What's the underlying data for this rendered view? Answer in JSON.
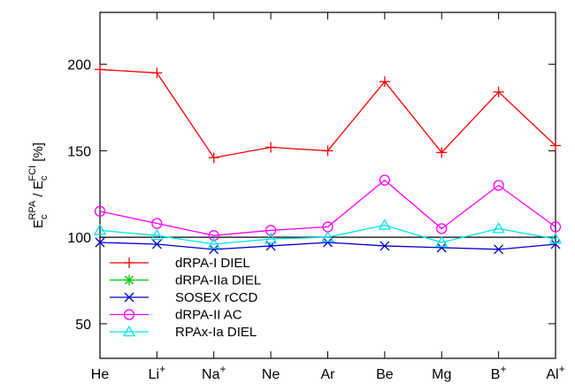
{
  "chart_data": {
    "type": "line",
    "title": "",
    "xlabel": "",
    "ylabel": {
      "base_main": "E",
      "base_sub": "c",
      "base_sup": "RPA",
      "slash": " / ",
      "ref_main": "E",
      "ref_sub": "c",
      "ref_sup": "FCI",
      "unit": "[%]"
    },
    "categories": [
      {
        "main": "He",
        "sup": ""
      },
      {
        "main": "Li",
        "sup": "+"
      },
      {
        "main": "Na",
        "sup": "+"
      },
      {
        "main": "Ne",
        "sup": ""
      },
      {
        "main": "Ar",
        "sup": ""
      },
      {
        "main": "Be",
        "sup": ""
      },
      {
        "main": "Mg",
        "sup": ""
      },
      {
        "main": "B",
        "sup": "+"
      },
      {
        "main": "Al",
        "sup": "+"
      }
    ],
    "ylim": [
      30,
      230
    ],
    "yticks": [
      50,
      100,
      150,
      200
    ],
    "reference_line": 100,
    "grid": false,
    "legend_position": "lower-left",
    "series": [
      {
        "name": "dRPA-I DIEL",
        "color": "#ff0000",
        "marker": "plus",
        "values": [
          197,
          195,
          146,
          152,
          150,
          190,
          149,
          184,
          153
        ]
      },
      {
        "name": "dRPA-IIa DIEL",
        "color": "#00cc00",
        "marker": "star",
        "values": [
          null,
          null,
          null,
          null,
          null,
          null,
          null,
          null,
          null
        ]
      },
      {
        "name": "SOSEX rCCD",
        "color": "#0000cc",
        "marker": "x",
        "values": [
          97,
          96,
          93,
          95,
          97,
          95,
          94,
          93,
          96
        ]
      },
      {
        "name": "dRPA-II AC",
        "color": "#ff00ff",
        "marker": "circle",
        "values": [
          115,
          108,
          101,
          104,
          106,
          133,
          105,
          130,
          106
        ]
      },
      {
        "name": "RPAx-Ia DIEL",
        "color": "#00e5e5",
        "marker": "triangle",
        "values": [
          104,
          101,
          96,
          99,
          100,
          107,
          97,
          105,
          99
        ]
      }
    ]
  }
}
